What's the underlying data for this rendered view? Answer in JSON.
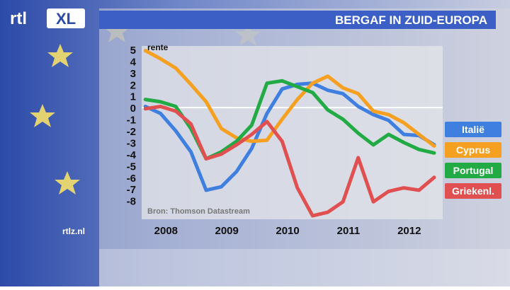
{
  "header": {
    "logo": "rtl",
    "logo_badge": "XL",
    "site": "rtlz.nl"
  },
  "chart_data": {
    "type": "line",
    "title": "BERGAF IN ZUID-EUROPA",
    "y_label": "rente",
    "source": "Bron: Thomson Datastream",
    "x": [
      2007.66,
      2007.91,
      2008.16,
      2008.41,
      2008.66,
      2008.91,
      2009.16,
      2009.41,
      2009.66,
      2009.91,
      2010.16,
      2010.41,
      2010.66,
      2010.91,
      2011.16,
      2011.41,
      2011.66,
      2011.91,
      2012.16,
      2012.41
    ],
    "xlim": [
      2007.6,
      2012.55
    ],
    "xticks": [
      2008,
      2009,
      2010,
      2011,
      2012
    ],
    "ylim": [
      -9.6,
      5.3
    ],
    "yticks": [
      5,
      4,
      3,
      2,
      1,
      0,
      -1,
      -2,
      -3,
      -4,
      -5,
      -6,
      -7,
      -8
    ],
    "series": [
      {
        "name": "Italië",
        "color": "#3f7fe0",
        "values": [
          0.1,
          -0.5,
          -2,
          -3.8,
          -7.1,
          -6.8,
          -5.5,
          -3.5,
          -0.5,
          1.6,
          2.0,
          2.1,
          1.5,
          1.2,
          0.1,
          -0.6,
          -1.1,
          -2.3,
          -2.4,
          -3.2
        ]
      },
      {
        "name": "Cyprus",
        "color": "#f5a020",
        "values": [
          4.9,
          4.2,
          3.4,
          2.0,
          0.5,
          -1.8,
          -2.6,
          -2.9,
          -2.8,
          -1.0,
          0.7,
          2.1,
          2.7,
          1.7,
          1.2,
          -0.3,
          -0.6,
          -1.3,
          -2.3,
          -3.3
        ]
      },
      {
        "name": "Portugal",
        "color": "#22aa44",
        "values": [
          0.7,
          0.5,
          0.1,
          -1.8,
          -4.4,
          -3.8,
          -2.9,
          -1.5,
          2.1,
          2.3,
          1.8,
          1.3,
          -0.2,
          -1.0,
          -2.2,
          -3.2,
          -2.3,
          -3.0,
          -3.6,
          -3.9
        ]
      },
      {
        "name": "Griekenl.",
        "color": "#e05050",
        "values": [
          -0.1,
          0.1,
          -0.3,
          -1.4,
          -4.4,
          -4.0,
          -3.2,
          -2.3,
          -1.2,
          -2.9,
          -6.9,
          -9.3,
          -9.0,
          -8.1,
          -4.3,
          -8.1,
          -7.2,
          -6.9,
          -7.1,
          -6.0
        ]
      }
    ]
  }
}
